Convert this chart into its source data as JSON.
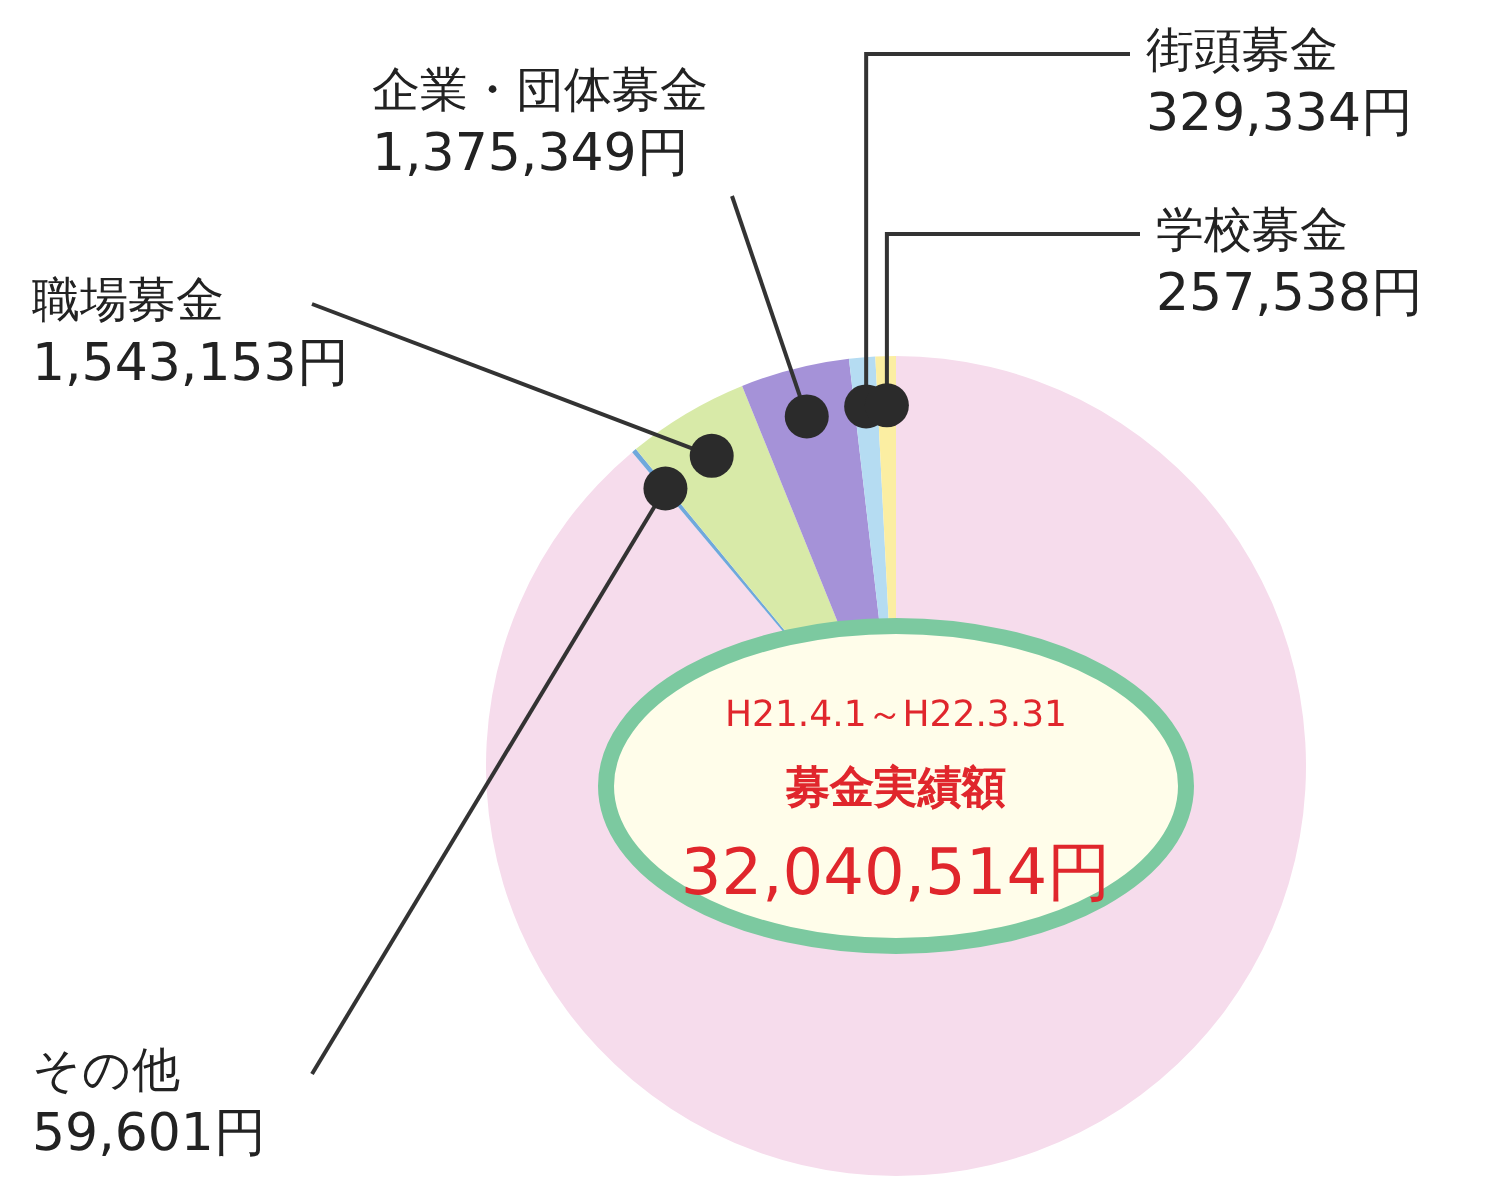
{
  "chart_data": {
    "type": "pie",
    "categories": [
      null,
      "その他",
      "職場募金",
      "企業・団体募金",
      "街頭募金",
      "学校募金"
    ],
    "values": [
      28475539,
      59601,
      1543153,
      1375349,
      329334,
      257538
    ],
    "value_labels": [
      null,
      "59,601円",
      "1,543,153円",
      "1,375,349円",
      "329,334円",
      "257,538円"
    ],
    "colors": [
      "#f6dcec",
      "#6fa8dc",
      "#d8eaa8",
      "#a592d8",
      "#b5dcf2",
      "#fbeea2"
    ],
    "annotations": [
      "H21.4.1～H22.3.31",
      "募金実績額",
      "32,040,514円"
    ],
    "legend": false
  }
}
